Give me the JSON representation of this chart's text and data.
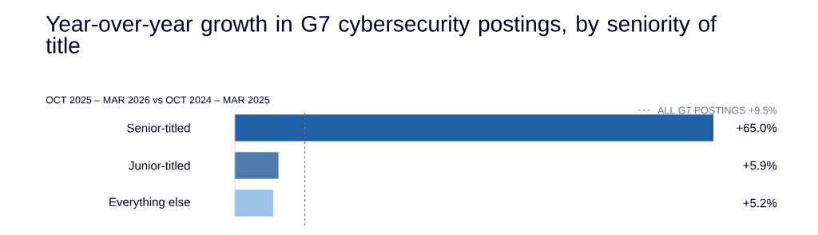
{
  "chart_data": {
    "type": "bar",
    "orientation": "horizontal",
    "title": "Year-over-year growth in G7 cybersecurity postings, by seniority of title",
    "subtitle": "OCT 2025 – MAR 2026 vs OCT 2024 – MAR 2025",
    "categories": [
      "Senior-titled",
      "Junior-titled",
      "Everything else"
    ],
    "values": [
      65.0,
      5.9,
      5.2
    ],
    "colors": [
      "#1f5fa6",
      "#4d7aab",
      "#9dc3eb"
    ],
    "value_labels": [
      "+65.0%",
      "+5.9%",
      "+5.2%"
    ],
    "xlim": [
      0,
      65
    ],
    "ref_lines": [
      {
        "axis": "x",
        "value": 9.5,
        "label": "ALL G7 POSTINGS +9.5%",
        "color": "#6b7488",
        "line_style": "dashed"
      }
    ]
  }
}
